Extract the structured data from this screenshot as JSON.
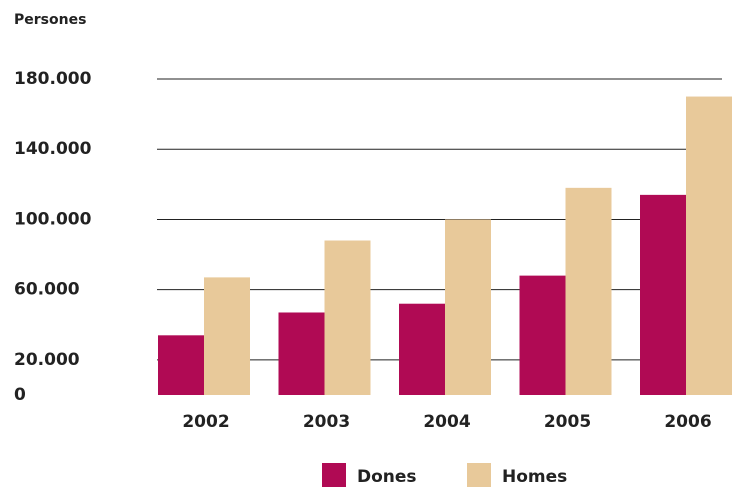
{
  "chart_data": {
    "type": "bar",
    "y_label": "Persones",
    "categories": [
      "2002",
      "2003",
      "2004",
      "2005",
      "2006"
    ],
    "series": [
      {
        "name": "Dones",
        "color": "#b00a54",
        "values": [
          34000,
          47000,
          52000,
          68000,
          114000
        ]
      },
      {
        "name": "Homes",
        "color": "#e8c99a",
        "values": [
          67000,
          88000,
          100000,
          118000,
          170000
        ]
      }
    ],
    "ylim": [
      0,
      180000
    ],
    "yticks": [
      0,
      {
        "value": 20000,
        "label": "20.000"
      },
      {
        "value": 60000,
        "label": "60.000"
      },
      {
        "value": 100000,
        "label": "100.000"
      },
      {
        "value": 140000,
        "label": "140.000"
      },
      {
        "value": 180000,
        "label": "180.000"
      }
    ],
    "grid": true,
    "legend": "bottom"
  }
}
